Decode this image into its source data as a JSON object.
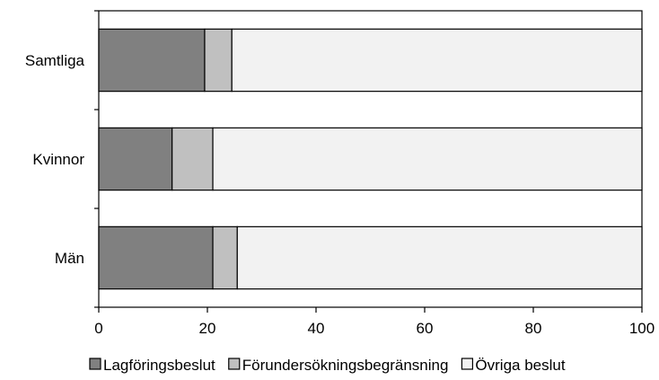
{
  "chart_data": {
    "type": "bar",
    "orientation": "horizontal",
    "stacked": true,
    "categories": [
      "Samtliga",
      "Kvinnor",
      "Män"
    ],
    "series": [
      {
        "name": "Lagföringsbeslut",
        "values": [
          19.5,
          13.5,
          21
        ],
        "color": "#808080"
      },
      {
        "name": "Förundersökningsbegränsning",
        "values": [
          5,
          7.5,
          4.5
        ],
        "color": "#c0c0c0"
      },
      {
        "name": "Övriga beslut",
        "values": [
          75.5,
          79,
          74.5
        ],
        "color": "#f2f2f2"
      }
    ],
    "xticks": [
      "0",
      "20",
      "40",
      "60",
      "80",
      "100"
    ],
    "xlim": [
      0,
      100
    ],
    "title": "",
    "xlabel": "",
    "ylabel": "",
    "grid": false,
    "legend_position": "bottom"
  }
}
